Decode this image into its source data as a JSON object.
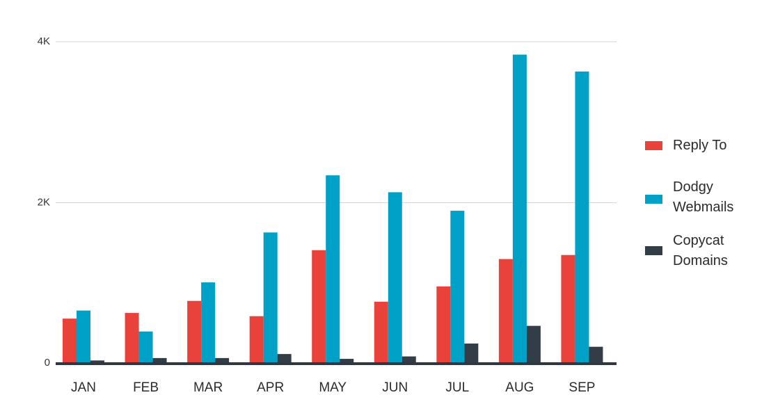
{
  "chart_data": {
    "type": "bar",
    "categories": [
      "JAN",
      "FEB",
      "MAR",
      "APR",
      "MAY",
      "JUN",
      "JUL",
      "AUG",
      "SEP"
    ],
    "series": [
      {
        "name": "Reply To",
        "color": "#e8423a",
        "values": [
          560,
          630,
          780,
          590,
          1410,
          770,
          960,
          1300,
          1350
        ]
      },
      {
        "name": "Dodgy Webmails",
        "color": "#00a1c7",
        "values": [
          660,
          400,
          1010,
          1630,
          2340,
          2130,
          1900,
          3840,
          3630
        ]
      },
      {
        "name": "Copycat Domains",
        "color": "#333d47",
        "values": [
          40,
          70,
          70,
          120,
          60,
          90,
          250,
          470,
          210
        ]
      }
    ],
    "legend_labels": [
      [
        "Reply To"
      ],
      [
        "Dodgy",
        "Webmails"
      ],
      [
        "Copycat",
        "Domains"
      ]
    ],
    "yticks": [
      {
        "value": 0,
        "label": "0"
      },
      {
        "value": 2000,
        "label": "2K"
      },
      {
        "value": 4000,
        "label": "4K"
      }
    ],
    "ylim": [
      0,
      4000
    ],
    "grid": true,
    "legend_position": "right",
    "title": "",
    "xlabel": "",
    "ylabel": ""
  }
}
